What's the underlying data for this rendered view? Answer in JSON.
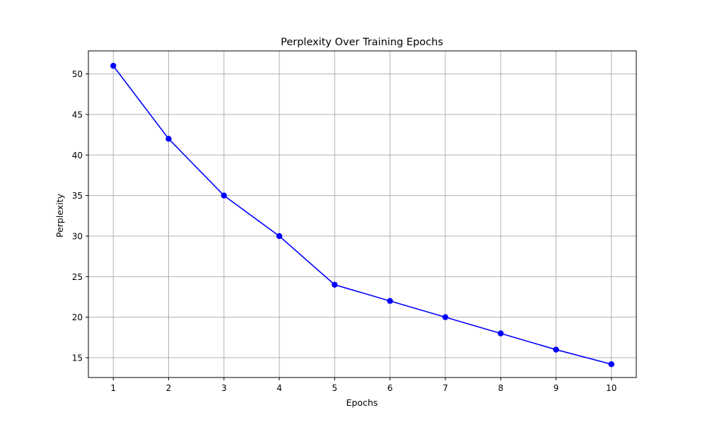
{
  "chart_data": {
    "type": "line",
    "title": "Perplexity Over Training Epochs",
    "xlabel": "Epochs",
    "ylabel": "Perplexity",
    "x": [
      1,
      2,
      3,
      4,
      5,
      6,
      7,
      8,
      9,
      10
    ],
    "series": [
      {
        "values": [
          51,
          42,
          35,
          30,
          24,
          22,
          20,
          18,
          16,
          14.2
        ],
        "color": "#0000ff",
        "marker": "circle"
      }
    ],
    "xlim": [
      0.55,
      10.45
    ],
    "ylim": [
      12.56,
      52.84
    ],
    "xticks": [
      "1",
      "2",
      "3",
      "4",
      "5",
      "6",
      "7",
      "8",
      "9",
      "10"
    ],
    "yticks": [
      "15",
      "20",
      "25",
      "30",
      "35",
      "40",
      "45",
      "50"
    ],
    "grid": true,
    "legend": "none"
  }
}
